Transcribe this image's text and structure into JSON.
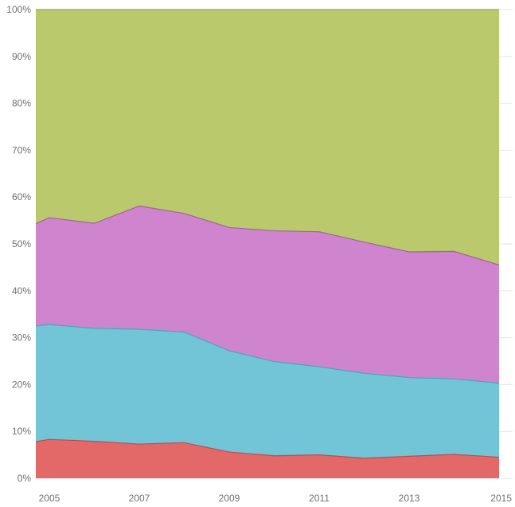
{
  "chart_data": {
    "type": "area",
    "stacked": true,
    "normalized": true,
    "title": "",
    "xlabel": "",
    "ylabel": "",
    "x": [
      2004.7,
      2005,
      2006,
      2007,
      2008,
      2009,
      2010,
      2011,
      2012,
      2013,
      2014,
      2015
    ],
    "xlim": [
      2004.7,
      2015.3
    ],
    "x_ticks": [
      2005,
      2007,
      2009,
      2011,
      2013,
      2015
    ],
    "x_tick_labels": [
      "2005",
      "2007",
      "2009",
      "2011",
      "2013",
      "2015"
    ],
    "ylim": [
      0,
      100
    ],
    "y_ticks": [
      0,
      10,
      20,
      30,
      40,
      50,
      60,
      70,
      80,
      90,
      100
    ],
    "y_tick_labels": [
      "0%",
      "10%",
      "20%",
      "30%",
      "40%",
      "50%",
      "60%",
      "70%",
      "80%",
      "90%",
      "100%"
    ],
    "series": [
      {
        "color": "#e26463",
        "values": [
          7.8,
          8.3,
          7.9,
          7.3,
          7.6,
          5.6,
          4.8,
          5.0,
          4.3,
          4.7,
          5.1,
          4.5
        ]
      },
      {
        "color": "#6cc3d6",
        "values": [
          24.7,
          24.5,
          24.1,
          24.5,
          23.6,
          21.6,
          20.1,
          18.8,
          18.1,
          16.8,
          16.1,
          15.8
        ]
      },
      {
        "color": "#cd80cc",
        "values": [
          21.8,
          22.8,
          22.4,
          26.3,
          25.3,
          26.3,
          27.9,
          28.8,
          28.0,
          26.8,
          27.2,
          25.2
        ]
      },
      {
        "color": "#b8c766",
        "values": [
          45.7,
          44.4,
          45.6,
          41.9,
          43.5,
          46.5,
          47.2,
          47.4,
          49.6,
          51.7,
          51.6,
          54.5
        ]
      }
    ],
    "grid": true,
    "legend": "none"
  }
}
